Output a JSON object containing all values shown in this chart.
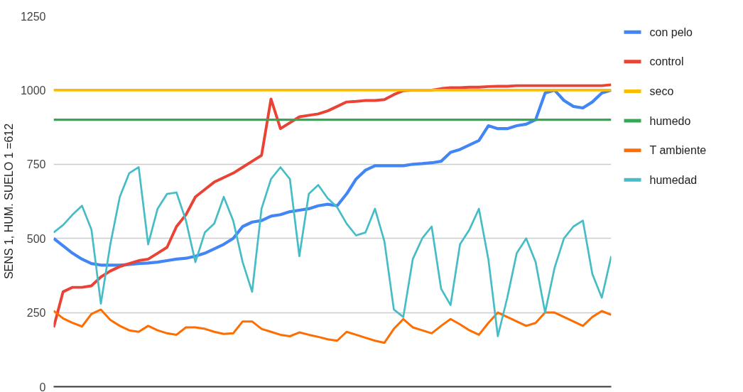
{
  "chart_data": {
    "type": "line",
    "ylabel": "SENS 1, HUM. SUELO 1 =612",
    "categories": [
      null,
      null,
      null,
      null,
      null,
      null,
      null,
      null,
      null,
      null,
      null,
      null,
      null,
      null,
      null,
      null,
      null,
      null,
      null,
      null,
      null,
      null,
      null,
      null,
      null,
      null,
      null,
      null,
      null,
      null,
      null,
      null,
      null,
      null,
      null,
      null,
      null,
      null,
      null,
      null,
      null,
      null,
      null,
      null,
      null,
      null,
      null,
      null,
      null,
      null,
      null,
      null,
      null,
      null,
      null,
      null,
      null,
      null,
      null,
      null
    ],
    "series": [
      {
        "name": "con pelo",
        "color": "#4285f4",
        "values": [
          500,
          475,
          450,
          430,
          415,
          410,
          410,
          410,
          412,
          415,
          417,
          420,
          425,
          430,
          433,
          440,
          450,
          465,
          480,
          500,
          540,
          555,
          560,
          575,
          580,
          590,
          595,
          600,
          610,
          615,
          610,
          650,
          700,
          730,
          745,
          745,
          745,
          745,
          750,
          752,
          755,
          760,
          790,
          800,
          815,
          830,
          880,
          870,
          870,
          880,
          885,
          900,
          990,
          1000,
          965,
          945,
          940,
          960,
          990,
          1000
        ]
      },
      {
        "name": "control",
        "color": "#ea4335",
        "values": [
          200,
          320,
          335,
          335,
          340,
          370,
          390,
          405,
          415,
          425,
          430,
          450,
          470,
          540,
          580,
          640,
          665,
          690,
          705,
          720,
          740,
          760,
          780,
          970,
          870,
          890,
          910,
          915,
          920,
          930,
          945,
          960,
          962,
          965,
          965,
          968,
          985,
          998,
          1000,
          1000,
          1000,
          1005,
          1008,
          1008,
          1010,
          1010,
          1012,
          1013,
          1013,
          1015,
          1015,
          1015,
          1015,
          1015,
          1015,
          1015,
          1015,
          1015,
          1015,
          1018
        ]
      },
      {
        "name": "seco",
        "color": "#fbbc04",
        "values": [
          1000,
          1000,
          1000,
          1000,
          1000,
          1000,
          1000,
          1000,
          1000,
          1000,
          1000,
          1000,
          1000,
          1000,
          1000,
          1000,
          1000,
          1000,
          1000,
          1000,
          1000,
          1000,
          1000,
          1000,
          1000,
          1000,
          1000,
          1000,
          1000,
          1000,
          1000,
          1000,
          1000,
          1000,
          1000,
          1000,
          1000,
          1000,
          1000,
          1000,
          1000,
          1000,
          1000,
          1000,
          1000,
          1000,
          1000,
          1000,
          1000,
          1000,
          1000,
          1000,
          1000,
          1000,
          1000,
          1000,
          1000,
          1000,
          1000,
          1000
        ]
      },
      {
        "name": "humedo",
        "color": "#34a853",
        "values": [
          900,
          900,
          900,
          900,
          900,
          900,
          900,
          900,
          900,
          900,
          900,
          900,
          900,
          900,
          900,
          900,
          900,
          900,
          900,
          900,
          900,
          900,
          900,
          900,
          900,
          900,
          900,
          900,
          900,
          900,
          900,
          900,
          900,
          900,
          900,
          900,
          900,
          900,
          900,
          900,
          900,
          900,
          900,
          900,
          900,
          900,
          900,
          900,
          900,
          900,
          900,
          900,
          900,
          900,
          900,
          900,
          900,
          900,
          900,
          900
        ]
      },
      {
        "name": "T ambiente",
        "color": "#ff6d01",
        "values": [
          256,
          230,
          215,
          203,
          245,
          260,
          225,
          205,
          190,
          185,
          205,
          190,
          180,
          175,
          200,
          200,
          195,
          185,
          178,
          180,
          220,
          220,
          195,
          185,
          175,
          170,
          183,
          175,
          168,
          160,
          155,
          185,
          175,
          165,
          155,
          148,
          195,
          228,
          200,
          190,
          180,
          205,
          228,
          210,
          190,
          175,
          215,
          250,
          235,
          220,
          205,
          215,
          250,
          250,
          235,
          220,
          205,
          235,
          255,
          242
        ]
      },
      {
        "name": "humedad",
        "color": "#46bdc6",
        "values": [
          520,
          545,
          580,
          610,
          530,
          280,
          480,
          640,
          720,
          740,
          480,
          600,
          650,
          655,
          560,
          420,
          520,
          550,
          640,
          560,
          420,
          320,
          600,
          700,
          740,
          700,
          440,
          650,
          680,
          635,
          605,
          550,
          510,
          520,
          600,
          490,
          260,
          235,
          430,
          500,
          540,
          330,
          275,
          480,
          530,
          600,
          430,
          170,
          300,
          450,
          500,
          420,
          250,
          400,
          500,
          540,
          560,
          380,
          300,
          440
        ]
      }
    ],
    "ylim": [
      0,
      1250
    ],
    "yticks": [
      0,
      250,
      500,
      750,
      1000,
      1250
    ],
    "grid": "y",
    "legend": "right",
    "tick_labels": "y"
  }
}
